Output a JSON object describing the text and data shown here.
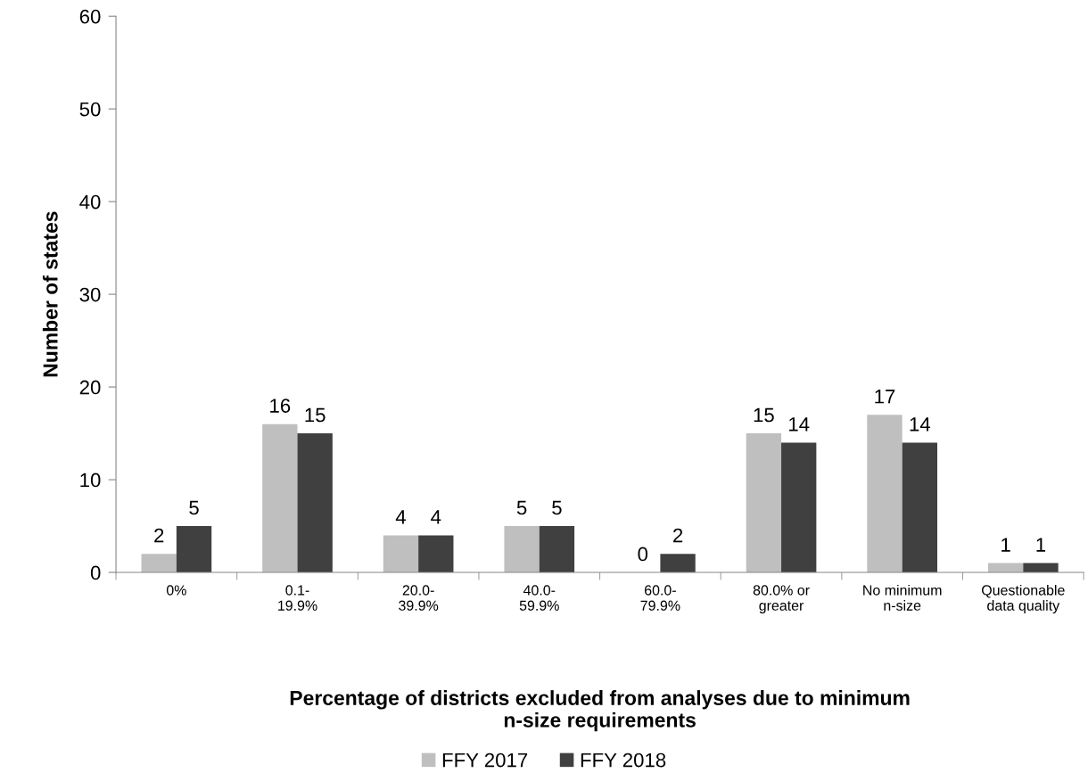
{
  "chart_data": {
    "type": "bar",
    "xlabel": "Percentage of districts excluded from analyses due to minimum\nn-size requirements",
    "ylabel": "Number of states",
    "categories": [
      "0%",
      "0.1-\n19.9%",
      "20.0-\n39.9%",
      "40.0-\n59.9%",
      "60.0-\n79.9%",
      "80.0% or\ngreater",
      "No minimum\nn-size",
      "Questionable\ndata quality"
    ],
    "series": [
      {
        "name": "FFY 2017",
        "color": "#bfbfbf",
        "values": [
          2,
          16,
          4,
          5,
          0,
          15,
          17,
          1
        ]
      },
      {
        "name": "FFY 2018",
        "color": "#404040",
        "values": [
          5,
          15,
          4,
          5,
          2,
          14,
          14,
          1
        ]
      }
    ],
    "ylim": [
      0,
      60
    ],
    "yticks": [
      0,
      10,
      20,
      30,
      40,
      50,
      60
    ],
    "data_labels": true,
    "grid": false,
    "legend": "bottom"
  }
}
